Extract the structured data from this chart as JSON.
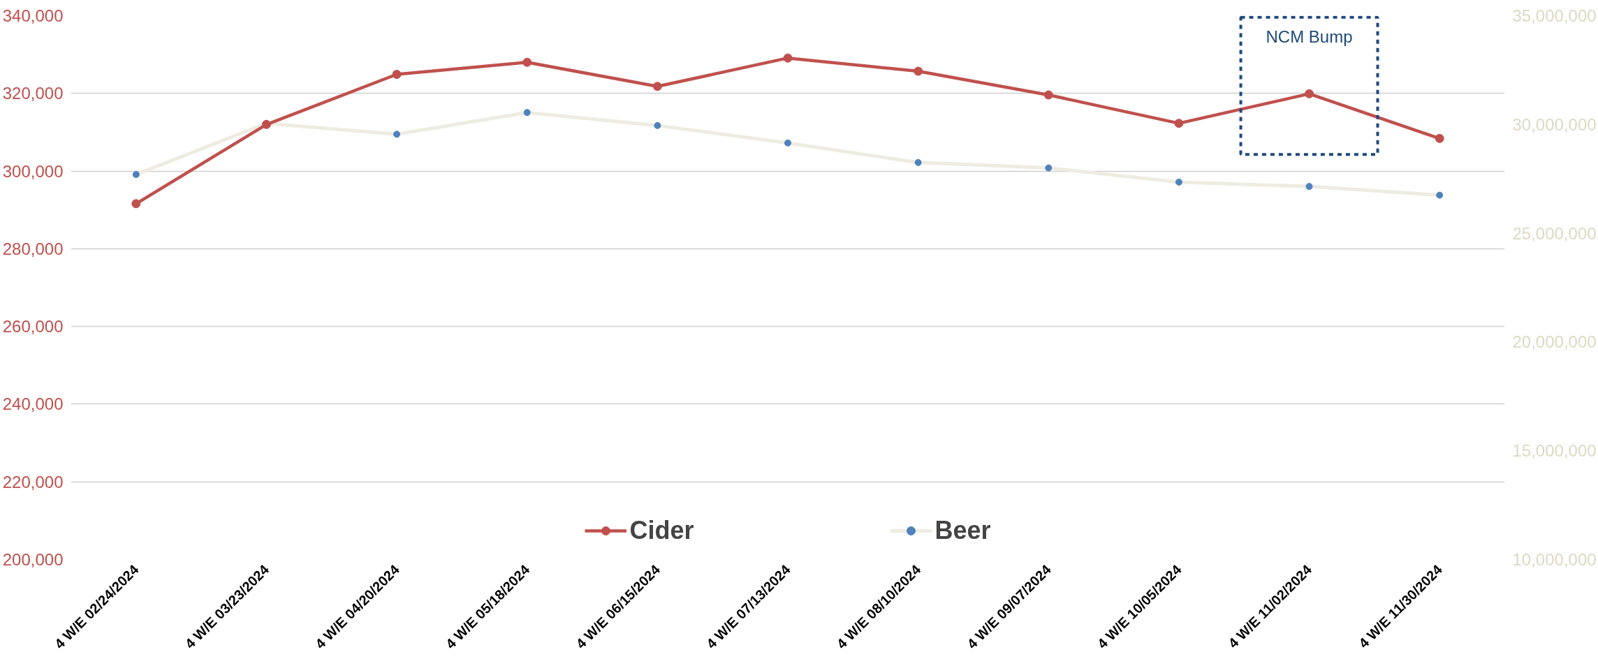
{
  "chart_data": {
    "type": "line",
    "categories": [
      "4 W/E 02/24/2024",
      "4 W/E 03/23/2024",
      "4 W/E 04/20/2024",
      "4 W/E 05/18/2024",
      "4 W/E 06/15/2024",
      "4 W/E 07/13/2024",
      "4 W/E 08/10/2024",
      "4 W/E 09/07/2024",
      "4 W/E 10/05/2024",
      "4 W/E 11/02/2024",
      "4 W/E 11/30/2024"
    ],
    "series": [
      {
        "name": "Cider",
        "color": "#c0504d",
        "values": [
          291600,
          312000,
          324900,
          328000,
          321800,
          329100,
          325700,
          319600,
          312300,
          319900,
          308400
        ]
      },
      {
        "name": "Beer",
        "color": "#eeece1",
        "axis": "y2",
        "values": [
          27700000,
          30050000,
          29550000,
          30550000,
          29950000,
          29150000,
          28250000,
          28000000,
          27350000,
          27150000,
          26750000
        ]
      }
    ],
    "ylim": [
      200000,
      340000
    ],
    "yticks": [
      {
        "value": 200000,
        "label": "200,000"
      },
      {
        "value": 220000,
        "label": "220,000"
      },
      {
        "value": 240000,
        "label": "240,000"
      },
      {
        "value": 260000,
        "label": "260,000"
      },
      {
        "value": 280000,
        "label": "280,000"
      },
      {
        "value": 300000,
        "label": "300,000"
      },
      {
        "value": 320000,
        "label": "320,000"
      },
      {
        "value": 340000,
        "label": "340,000"
      }
    ],
    "y2lim": [
      10000000,
      35000000
    ],
    "y2ticks": [
      {
        "value": 10000000,
        "label": "10,000,000"
      },
      {
        "value": 15000000,
        "label": "15,000,000"
      },
      {
        "value": 20000000,
        "label": "20,000,000"
      },
      {
        "value": 25000000,
        "label": "25,000,000"
      },
      {
        "value": 30000000,
        "label": "30,000,000"
      },
      {
        "value": 35000000,
        "label": "35,000,000"
      }
    ],
    "annotations": [
      {
        "text": "NCM Bump",
        "x": "4 W/E 11/02/2024",
        "y": 319900
      }
    ],
    "grid": "y",
    "legend": "bottom",
    "marker": "circle",
    "line_style": "solid"
  }
}
